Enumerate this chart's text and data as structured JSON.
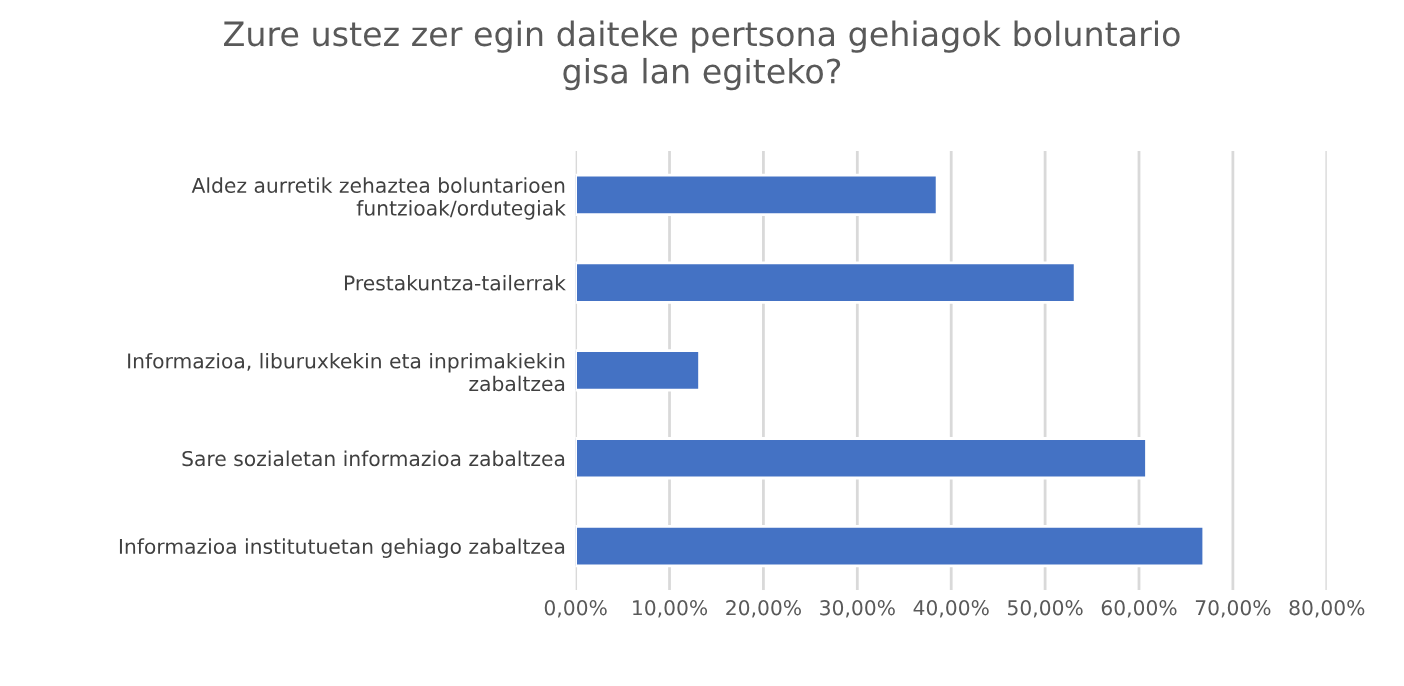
{
  "chart_data": {
    "type": "bar",
    "orientation": "horizontal",
    "title": "Zure ustez zer egin daiteke pertsona gehiagok boluntario\ngisa lan egiteko?",
    "categories": [
      "Aldez aurretik zehaztea boluntarioen\nfuntzioak/ordutegiak",
      "Prestakuntza-tailerrak",
      "Informazioa, liburuxkekin eta inprimakiekin\nzabaltzea",
      "Sare sozialetan informazioa zabaltzea",
      "Informazioa institutuetan gehiago zabaltzea"
    ],
    "values": [
      38.5,
      53.2,
      13.2,
      60.8,
      66.9
    ],
    "color": "#4472c4",
    "xlim": [
      0,
      80
    ],
    "xticks": [
      {
        "value": 0,
        "label": "0,00%"
      },
      {
        "value": 10,
        "label": "10,00%"
      },
      {
        "value": 20,
        "label": "20,00%"
      },
      {
        "value": 30,
        "label": "30,00%"
      },
      {
        "value": 40,
        "label": "40,00%"
      },
      {
        "value": 50,
        "label": "50,00%"
      },
      {
        "value": 60,
        "label": "60,00%"
      },
      {
        "value": 70,
        "label": "70,00%"
      },
      {
        "value": 80,
        "label": "80,00%"
      }
    ],
    "grid": "x",
    "legend": false
  }
}
